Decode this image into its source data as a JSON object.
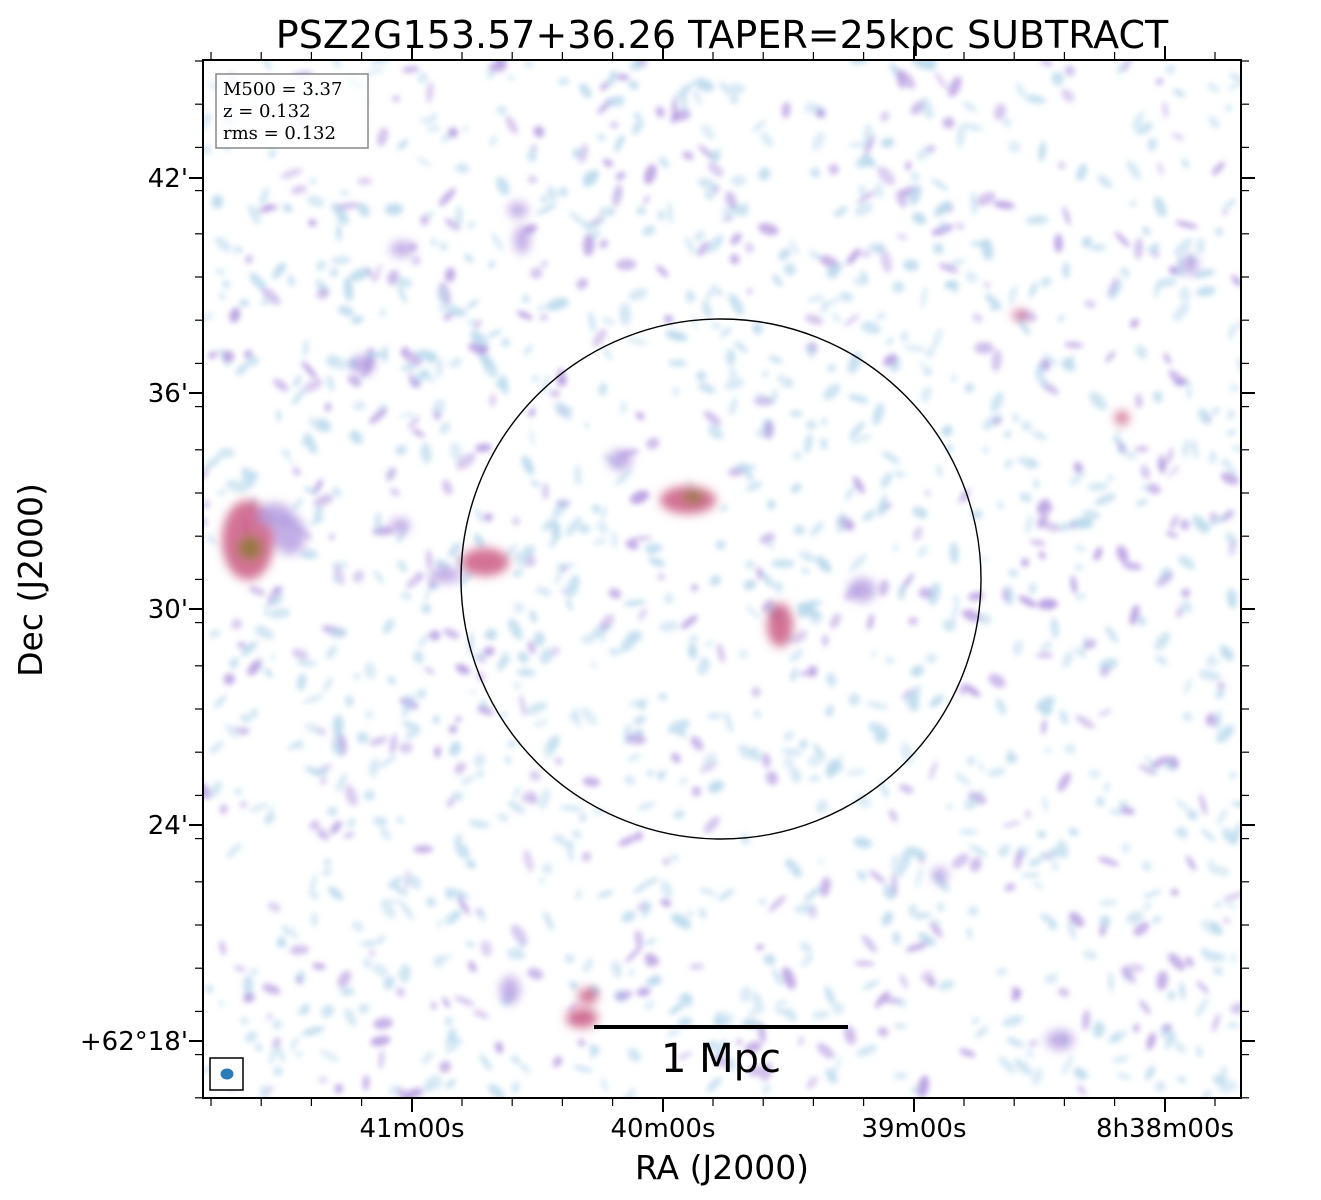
{
  "title": "PSZ2G153.57+36.26 TAPER=25kpc SUBTRACT",
  "xlabel": "RA (J2000)",
  "ylabel": "Dec (J2000)",
  "x_ticks": [
    "41m00s",
    "40m00s",
    "39m00s",
    "8h38m00s"
  ],
  "y_ticks": [
    "42'",
    "36'",
    "30'",
    "24'",
    "+62°18'"
  ],
  "info": {
    "m500": "M500 = 3.37",
    "z": "z = 0.132",
    "rms": "rms = 0.132"
  },
  "scalebar": {
    "label": "1 Mpc"
  },
  "colors": {
    "emission_low": "#b8d8ec",
    "emission_mid": "#b39ae0",
    "emission_high": "#c8507a",
    "emission_peak": "#8a7a2a",
    "beam": "#2b7bb9"
  }
}
